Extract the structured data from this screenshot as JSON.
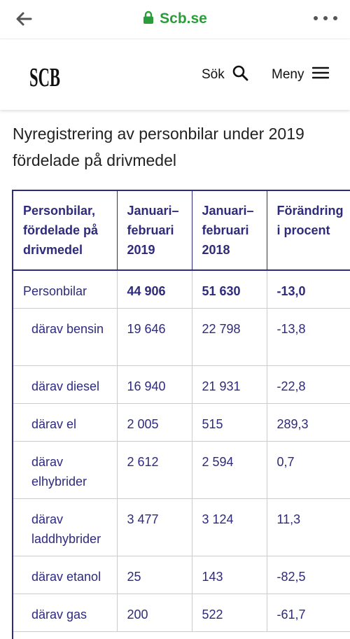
{
  "browser": {
    "url": "Scb.se",
    "back_icon": "arrow-left-icon",
    "lock_icon": "lock-icon",
    "more_icon": "more-dots-icon",
    "url_color": "#2a9d3a"
  },
  "header": {
    "logo_text": "SCB",
    "search_label": "Sök",
    "menu_label": "Meny"
  },
  "article": {
    "title": "Nyregistrering av personbilar under 2019 fördelade på drivmedel"
  },
  "table": {
    "accent_color": "#2e2a7c",
    "headers": [
      "Personbilar, fördelade på drivmedel",
      "Januari–februari 2019",
      "Januari–februari 2018",
      "Förändring i procent"
    ],
    "rows": [
      {
        "label": "Personbilar",
        "v2019": "44 906",
        "v2018": "51 630",
        "change": "-13,0"
      },
      {
        "label": "därav bensin",
        "v2019": "19 646",
        "v2018": "22 798",
        "change": "-13,8"
      },
      {
        "label": "därav diesel",
        "v2019": "16 940",
        "v2018": "21 931",
        "change": "-22,8"
      },
      {
        "label": "därav el",
        "v2019": "2 005",
        "v2018": "515",
        "change": "289,3"
      },
      {
        "label": "därav elhybrider",
        "v2019": "2 612",
        "v2018": "2 594",
        "change": "0,7"
      },
      {
        "label": "därav laddhybrider",
        "v2019": "3 477",
        "v2018": "3 124",
        "change": "11,3"
      },
      {
        "label": "därav etanol",
        "v2019": "25",
        "v2018": "143",
        "change": "-82,5"
      },
      {
        "label": "därav gas",
        "v2019": "200",
        "v2018": "522",
        "change": "-61,7"
      }
    ]
  }
}
